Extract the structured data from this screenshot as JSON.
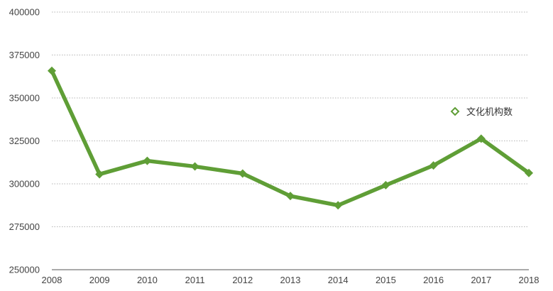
{
  "chart_data": {
    "type": "line",
    "title": "",
    "xlabel": "",
    "ylabel": "",
    "categories": [
      "2008",
      "2009",
      "2010",
      "2011",
      "2012",
      "2013",
      "2014",
      "2015",
      "2016",
      "2017",
      "2018"
    ],
    "series": [
      {
        "name": "文化机构数",
        "values": [
          365800,
          305600,
          313400,
          310100,
          306000,
          292900,
          287500,
          299200,
          310700,
          326300,
          306300
        ],
        "color": "#5f9e36",
        "marker": "diamond"
      }
    ],
    "ylim": [
      250000,
      400000
    ],
    "yticks": [
      250000,
      275000,
      300000,
      325000,
      350000,
      375000,
      400000
    ],
    "grid": true,
    "legend_position": "right"
  }
}
